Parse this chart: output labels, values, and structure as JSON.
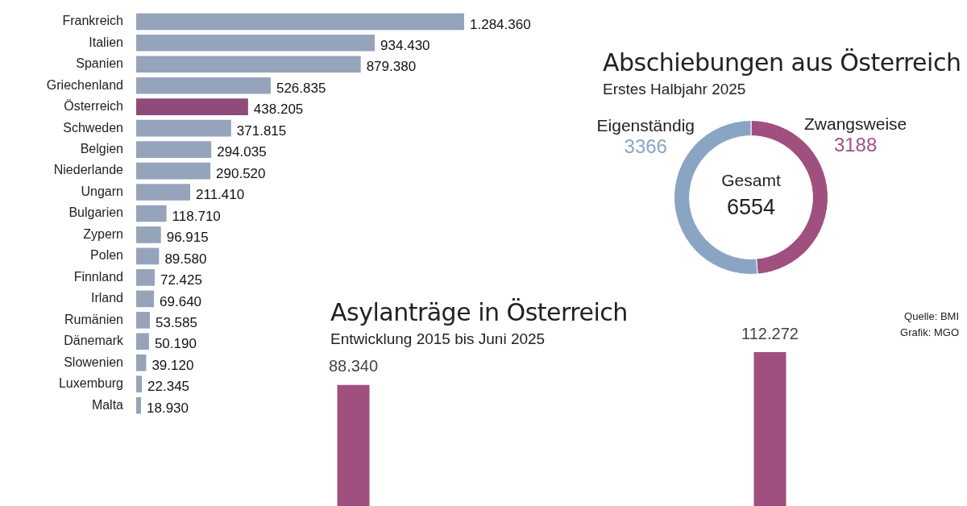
{
  "chart_data": [
    {
      "type": "bar",
      "orientation": "horizontal",
      "categories": [
        "Frankreich",
        "Italien",
        "Spanien",
        "Griechenland",
        "Österreich",
        "Schweden",
        "Belgien",
        "Niederlande",
        "Ungarn",
        "Bulgarien",
        "Zypern",
        "Polen",
        "Finnland",
        "Irland",
        "Rumänien",
        "Dänemark",
        "Slowenien",
        "Luxemburg",
        "Malta"
      ],
      "values": [
        1284360,
        934430,
        879380,
        526835,
        438205,
        371815,
        294035,
        290520,
        211410,
        118710,
        96915,
        89580,
        72425,
        69640,
        53585,
        50190,
        39120,
        22345,
        18930
      ],
      "colors": [
        "#95a3bb",
        "#95a3bb",
        "#95a3bb",
        "#95a3bb",
        "#8f4a7a",
        "#95a3bb",
        "#95a3bb",
        "#95a3bb",
        "#95a3bb",
        "#95a3bb",
        "#95a3bb",
        "#95a3bb",
        "#95a3bb",
        "#95a3bb",
        "#95a3bb",
        "#95a3bb",
        "#95a3bb",
        "#95a3bb",
        "#95a3bb"
      ],
      "value_labels": [
        "1.284.360",
        "934.430",
        "879.380",
        "526.835",
        "438.205",
        "371.815",
        "294.035",
        "290.520",
        "211.410",
        "118.710",
        "96.915",
        "89.580",
        "72.425",
        "69.640",
        "53.585",
        "50.190",
        "39.120",
        "22.345",
        "18.930"
      ]
    },
    {
      "type": "donut",
      "title": "Abschiebungen aus Österreich",
      "subtitle": "Erstes Halbjahr 2025",
      "categories": [
        "Zwangsweise",
        "Eigenständig"
      ],
      "values": [
        3188,
        3366
      ],
      "colors": [
        "#a0507f",
        "#8aa4c4"
      ],
      "data_labels": true,
      "annotations": [
        "Gesamt",
        "6554"
      ]
    },
    {
      "type": "bar",
      "title": "Asylanträge in Österreich",
      "subtitle": "Entwicklung 2015 bis Juni 2025",
      "categories": [
        null,
        null
      ],
      "values": [
        88340,
        112272
      ],
      "value_labels": [
        "88.340",
        "112.272"
      ],
      "color": "#a0507f",
      "annotations": [
        "Quelle: BMI",
        "Grafik: MGO"
      ]
    }
  ]
}
